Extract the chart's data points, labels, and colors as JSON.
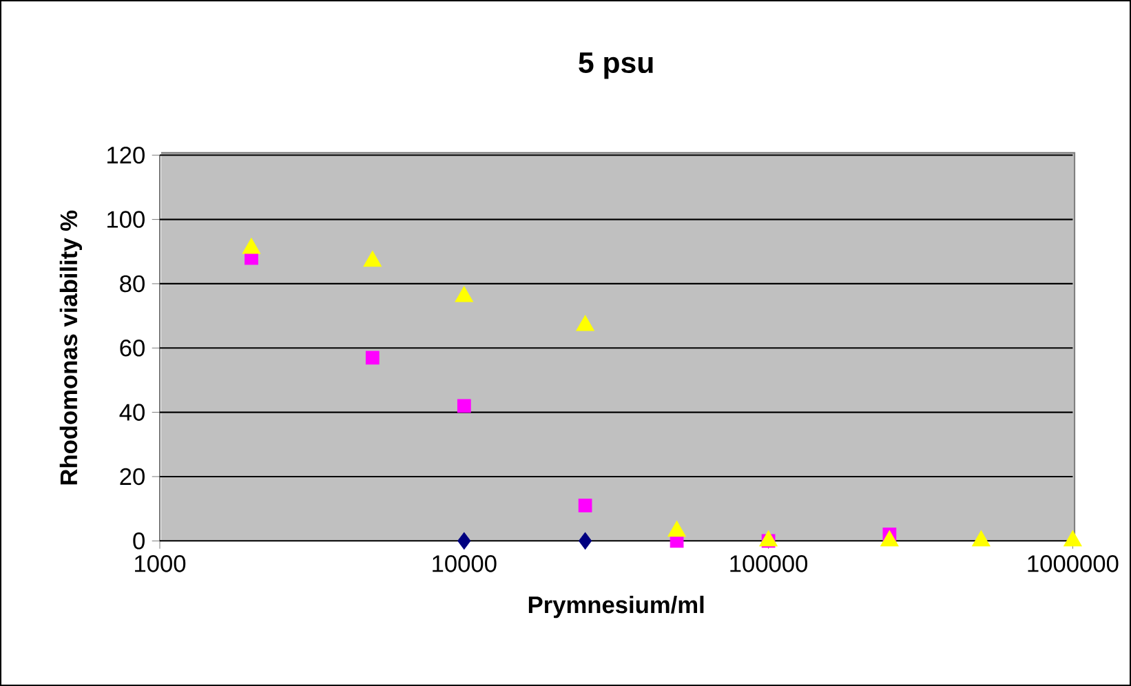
{
  "chart_data": {
    "type": "scatter",
    "title": "5 psu",
    "xlabel": "Prymnesium/ml",
    "ylabel": "Rhodomonas viability %",
    "log": "x",
    "xlim": [
      1000,
      1000000
    ],
    "xticks": [
      1000,
      10000,
      100000,
      1000000
    ],
    "ylim": [
      0,
      120
    ],
    "yticks": [
      0,
      20,
      40,
      60,
      80,
      100,
      120
    ],
    "grid": "y",
    "series": [
      {
        "color": "#000080",
        "marker": "diamond",
        "x": [
          10000,
          25000
        ],
        "values": [
          0,
          0
        ]
      },
      {
        "color": "#ff00ff",
        "marker": "square",
        "x": [
          2000,
          5000,
          10000,
          25000,
          50000,
          100000,
          250000
        ],
        "values": [
          88,
          57,
          42,
          11,
          0,
          0,
          2
        ]
      },
      {
        "color": "#ffff00",
        "marker": "triangle",
        "x": [
          2000,
          5000,
          10000,
          25000,
          50000,
          100000,
          250000,
          500000,
          1000000
        ],
        "values": [
          91,
          87,
          76,
          67,
          3,
          0,
          0,
          0,
          0
        ]
      }
    ]
  }
}
